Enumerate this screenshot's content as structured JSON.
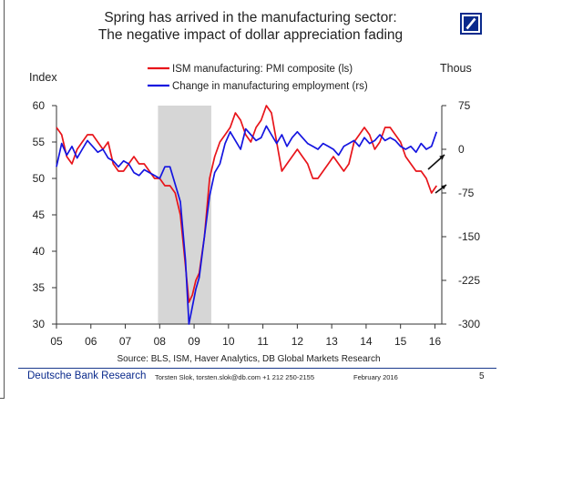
{
  "slide": {
    "title_line1": "Spring has arrived in the manufacturing sector:",
    "title_line2": "The negative impact of dollar appreciation fading",
    "footer_brand": "Deutsche Bank Research",
    "footer_author": "Torsten Slok, torsten.slok@db.com +1 212 250-2155",
    "footer_date": "February 2016",
    "page_number": "5",
    "accent_color": "#0a2a8c"
  },
  "chart_data": {
    "type": "line",
    "title": "Spring has arrived in the manufacturing sector: The negative impact of dollar appreciation fading",
    "ylabel_left": "Index",
    "ylabel_right": "Thous",
    "source": "Source: BLS, ISM, Haver Analytics, DB Global Markets Research",
    "x_range": [
      2005,
      2016.2
    ],
    "x_tick_values": [
      2005,
      2006,
      2007,
      2008,
      2009,
      2010,
      2011,
      2012,
      2013,
      2014,
      2015,
      2016
    ],
    "x_tick_labels": [
      "05",
      "06",
      "07",
      "08",
      "09",
      "10",
      "11",
      "12",
      "13",
      "14",
      "15",
      "16"
    ],
    "left_axis": {
      "ylim": [
        30,
        60
      ],
      "ticks": [
        30,
        35,
        40,
        45,
        50,
        55,
        60
      ]
    },
    "right_axis": {
      "ylim": [
        -300,
        75
      ],
      "ticks": [
        75,
        0,
        -75,
        -150,
        -225,
        -300
      ]
    },
    "recession_shading": {
      "start": 2007.95,
      "end": 2009.5,
      "color": "#d6d6d6"
    },
    "series": [
      {
        "name": "ISM manufacturing: PMI composite (ls)",
        "axis": "left",
        "color": "#e8141a",
        "x": [
          2005.0,
          2005.15,
          2005.3,
          2005.45,
          2005.6,
          2005.75,
          2005.9,
          2006.05,
          2006.2,
          2006.35,
          2006.5,
          2006.65,
          2006.8,
          2006.95,
          2007.1,
          2007.25,
          2007.4,
          2007.55,
          2007.7,
          2007.85,
          2008.0,
          2008.15,
          2008.3,
          2008.45,
          2008.6,
          2008.75,
          2008.85,
          2008.95,
          2009.05,
          2009.15,
          2009.3,
          2009.45,
          2009.6,
          2009.75,
          2009.9,
          2010.05,
          2010.2,
          2010.35,
          2010.5,
          2010.65,
          2010.8,
          2010.95,
          2011.1,
          2011.25,
          2011.4,
          2011.55,
          2011.7,
          2011.85,
          2012.0,
          2012.15,
          2012.3,
          2012.45,
          2012.6,
          2012.75,
          2012.9,
          2013.05,
          2013.2,
          2013.35,
          2013.5,
          2013.65,
          2013.8,
          2013.95,
          2014.1,
          2014.25,
          2014.4,
          2014.55,
          2014.7,
          2014.85,
          2015.0,
          2015.15,
          2015.3,
          2015.45,
          2015.6,
          2015.75,
          2015.9,
          2016.05
        ],
        "values": [
          57,
          56,
          53,
          52,
          54,
          55,
          56,
          56,
          55,
          54,
          55,
          52,
          51,
          51,
          52,
          53,
          52,
          52,
          51,
          50,
          50,
          49,
          49,
          48,
          45,
          38,
          33,
          34,
          36,
          37,
          42,
          50,
          53,
          55,
          56,
          57,
          59,
          58,
          56,
          55,
          57,
          58,
          60,
          59,
          55,
          51,
          52,
          53,
          54,
          53,
          52,
          50,
          50,
          51,
          52,
          53,
          52,
          51,
          52,
          55,
          56,
          57,
          56,
          54,
          55,
          57,
          57,
          56,
          55,
          53,
          52,
          51,
          51,
          50,
          48,
          49
        ]
      },
      {
        "name": "Change in manufacturing employment (rs)",
        "axis": "right",
        "color": "#1515e0",
        "x": [
          2005.0,
          2005.15,
          2005.3,
          2005.45,
          2005.6,
          2005.75,
          2005.9,
          2006.05,
          2006.2,
          2006.35,
          2006.5,
          2006.65,
          2006.8,
          2006.95,
          2007.1,
          2007.25,
          2007.4,
          2007.55,
          2007.7,
          2007.85,
          2008.0,
          2008.15,
          2008.3,
          2008.45,
          2008.6,
          2008.75,
          2008.85,
          2008.95,
          2009.05,
          2009.15,
          2009.3,
          2009.45,
          2009.6,
          2009.75,
          2009.9,
          2010.05,
          2010.2,
          2010.35,
          2010.5,
          2010.65,
          2010.8,
          2010.95,
          2011.1,
          2011.25,
          2011.4,
          2011.55,
          2011.7,
          2011.85,
          2012.0,
          2012.15,
          2012.3,
          2012.45,
          2012.6,
          2012.75,
          2012.9,
          2013.05,
          2013.2,
          2013.35,
          2013.5,
          2013.65,
          2013.8,
          2013.95,
          2014.1,
          2014.25,
          2014.4,
          2014.55,
          2014.7,
          2014.85,
          2015.0,
          2015.15,
          2015.3,
          2015.45,
          2015.6,
          2015.75,
          2015.9,
          2016.05
        ],
        "values": [
          -30,
          10,
          -10,
          5,
          -15,
          0,
          15,
          5,
          -5,
          0,
          -15,
          -20,
          -30,
          -20,
          -25,
          -40,
          -45,
          -35,
          -40,
          -45,
          -50,
          -30,
          -30,
          -60,
          -90,
          -190,
          -300,
          -270,
          -240,
          -220,
          -150,
          -80,
          -40,
          -25,
          10,
          30,
          15,
          0,
          35,
          25,
          15,
          20,
          40,
          25,
          10,
          25,
          5,
          20,
          30,
          20,
          10,
          5,
          0,
          10,
          5,
          0,
          -10,
          5,
          10,
          15,
          5,
          20,
          10,
          15,
          25,
          15,
          20,
          15,
          5,
          0,
          5,
          -5,
          10,
          0,
          5,
          30
        ]
      }
    ]
  }
}
